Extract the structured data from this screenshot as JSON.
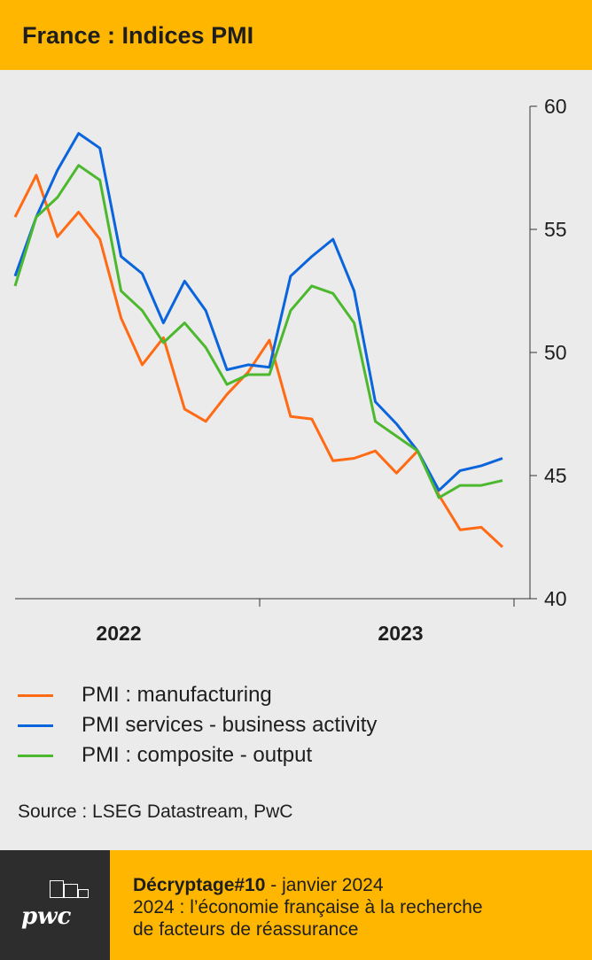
{
  "header": {
    "title": "France : Indices PMI"
  },
  "chart_data": {
    "type": "line",
    "title": "France : Indices PMI",
    "x": [
      "2022-01",
      "2022-02",
      "2022-03",
      "2022-04",
      "2022-05",
      "2022-06",
      "2022-07",
      "2022-08",
      "2022-09",
      "2022-10",
      "2022-11",
      "2022-12",
      "2023-01",
      "2023-02",
      "2023-03",
      "2023-04",
      "2023-05",
      "2023-06",
      "2023-07",
      "2023-08",
      "2023-09",
      "2023-10",
      "2023-11",
      "2023-12"
    ],
    "x_tick_labels": [
      "2022",
      "2023"
    ],
    "y_ticks": [
      60,
      55,
      50,
      45,
      40
    ],
    "ylim": [
      40,
      60
    ],
    "y_axis_position": "right",
    "grid": false,
    "legend_position": "bottom",
    "series": [
      {
        "name": "PMI : manufacturing",
        "color": "#FF6A14",
        "values": [
          55.5,
          57.2,
          54.7,
          55.7,
          54.6,
          51.4,
          49.5,
          50.6,
          47.7,
          47.2,
          48.3,
          49.2,
          50.5,
          47.4,
          47.3,
          45.6,
          45.7,
          46.0,
          45.1,
          46.0,
          44.2,
          42.8,
          42.9,
          42.1
        ]
      },
      {
        "name": "PMI services - business activity",
        "color": "#0A64DC",
        "values": [
          53.1,
          55.5,
          57.4,
          58.9,
          58.3,
          53.9,
          53.2,
          51.2,
          52.9,
          51.7,
          49.3,
          49.5,
          49.4,
          53.1,
          53.9,
          54.6,
          52.5,
          48.0,
          47.1,
          46.0,
          44.4,
          45.2,
          45.4,
          45.7
        ]
      },
      {
        "name": "PMI : composite - output",
        "color": "#4CB82E",
        "values": [
          52.7,
          55.5,
          56.3,
          57.6,
          57.0,
          52.5,
          51.7,
          50.4,
          51.2,
          50.2,
          48.7,
          49.1,
          49.1,
          51.7,
          52.7,
          52.4,
          51.2,
          47.2,
          46.6,
          46.0,
          44.1,
          44.6,
          44.6,
          44.8
        ]
      }
    ]
  },
  "source": "Source : LSEG Datastream, PwC",
  "footer": {
    "logo": "pwc",
    "series_label": "Décryptage#10",
    "date": " - janvier 2024",
    "line2": "2024 : l’économie française à la recherche",
    "line3": "de facteurs de réassurance"
  }
}
